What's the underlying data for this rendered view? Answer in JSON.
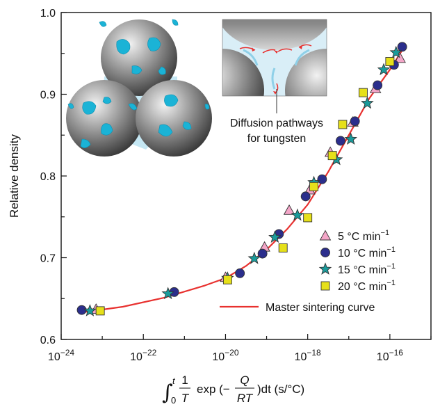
{
  "chart_data": {
    "type": "scatter",
    "title": "",
    "ylabel": "Relative density",
    "xlabel": {
      "integral_lower": "0",
      "integral_upper": "t",
      "frac1_num": "1",
      "frac1_den": "T",
      "exp_text": "exp (−",
      "frac2_num": "Q",
      "frac2_den": "RT",
      "tail_text": ")dt (s/°C)"
    },
    "x_scale": "log",
    "xlim_exponent": [
      -24,
      -15
    ],
    "ylim": [
      0.6,
      1.0
    ],
    "x_ticks": [
      {
        "base": "10",
        "exp": "−24",
        "value": -24
      },
      {
        "base": "10",
        "exp": "−22",
        "value": -22
      },
      {
        "base": "10",
        "exp": "−20",
        "value": -20
      },
      {
        "base": "10",
        "exp": "−18",
        "value": -18
      },
      {
        "base": "10",
        "exp": "−16",
        "value": -16
      }
    ],
    "y_ticks": [
      {
        "label": "0.6",
        "value": 0.6
      },
      {
        "label": "0.7",
        "value": 0.7
      },
      {
        "label": "0.8",
        "value": 0.8
      },
      {
        "label": "0.9",
        "value": 0.9
      },
      {
        "label": "1.0",
        "value": 1.0
      }
    ],
    "series": [
      {
        "name": "5 °C min",
        "superscript": "−1",
        "marker": "triangle",
        "color": "#f4a6c8",
        "points": [
          [
            -23.15,
            0.637
          ],
          [
            -20.0,
            0.676
          ],
          [
            -19.05,
            0.713
          ],
          [
            -18.45,
            0.758
          ],
          [
            -17.95,
            0.783
          ],
          [
            -17.45,
            0.829
          ],
          [
            -16.9,
            0.866
          ],
          [
            -16.35,
            0.907
          ],
          [
            -15.75,
            0.944
          ]
        ]
      },
      {
        "name": "10 °C min",
        "superscript": "−1",
        "marker": "circle",
        "color": "#2b2e8c",
        "points": [
          [
            -23.5,
            0.636
          ],
          [
            -21.25,
            0.658
          ],
          [
            -19.65,
            0.681
          ],
          [
            -19.1,
            0.705
          ],
          [
            -18.7,
            0.729
          ],
          [
            -18.05,
            0.775
          ],
          [
            -17.65,
            0.796
          ],
          [
            -17.2,
            0.843
          ],
          [
            -16.85,
            0.867
          ],
          [
            -16.3,
            0.911
          ],
          [
            -15.9,
            0.936
          ],
          [
            -15.7,
            0.958
          ]
        ]
      },
      {
        "name": "15 °C min",
        "superscript": "−1",
        "marker": "star",
        "color": "#1a9b9b",
        "points": [
          [
            -23.3,
            0.635
          ],
          [
            -21.4,
            0.656
          ],
          [
            -19.95,
            0.675
          ],
          [
            -19.3,
            0.699
          ],
          [
            -18.8,
            0.725
          ],
          [
            -18.25,
            0.752
          ],
          [
            -17.85,
            0.792
          ],
          [
            -17.3,
            0.82
          ],
          [
            -16.95,
            0.845
          ],
          [
            -16.55,
            0.889
          ],
          [
            -16.15,
            0.93
          ],
          [
            -15.85,
            0.951
          ]
        ]
      },
      {
        "name": "20 °C min",
        "superscript": "−1",
        "marker": "square",
        "color": "#e6e01a",
        "points": [
          [
            -23.05,
            0.635
          ],
          [
            -19.95,
            0.673
          ],
          [
            -18.6,
            0.712
          ],
          [
            -18.0,
            0.749
          ],
          [
            -17.85,
            0.787
          ],
          [
            -17.4,
            0.825
          ],
          [
            -17.15,
            0.863
          ],
          [
            -16.65,
            0.902
          ],
          [
            -16.0,
            0.94
          ]
        ]
      }
    ],
    "curve": {
      "name": "Master sintering curve",
      "color": "#e8312f",
      "points": [
        [
          -23.5,
          0.633
        ],
        [
          -22.5,
          0.64
        ],
        [
          -21.5,
          0.651
        ],
        [
          -20.5,
          0.666
        ],
        [
          -20.0,
          0.675
        ],
        [
          -19.5,
          0.69
        ],
        [
          -19.0,
          0.71
        ],
        [
          -18.5,
          0.735
        ],
        [
          -18.0,
          0.765
        ],
        [
          -17.5,
          0.805
        ],
        [
          -17.0,
          0.85
        ],
        [
          -16.5,
          0.895
        ],
        [
          -16.0,
          0.93
        ],
        [
          -15.65,
          0.958
        ]
      ]
    },
    "legend_placement": "bottom-right",
    "annotation": {
      "lines": [
        "Diffusion pathways",
        "for tungsten"
      ]
    },
    "inset_colors": {
      "sphere": "#8c8c8c",
      "tungsten": "#1bb3d6",
      "neck": "#bfe4f2",
      "arrow": "#e8312f"
    }
  }
}
